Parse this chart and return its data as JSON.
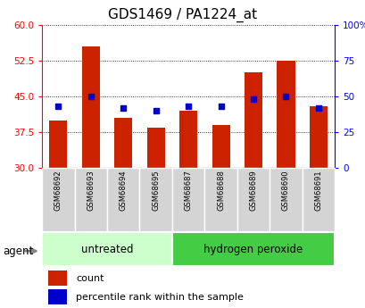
{
  "title": "GDS1469 / PA1224_at",
  "samples": [
    "GSM68692",
    "GSM68693",
    "GSM68694",
    "GSM68695",
    "GSM68687",
    "GSM68688",
    "GSM68689",
    "GSM68690",
    "GSM68691"
  ],
  "counts": [
    40.0,
    55.5,
    40.5,
    38.5,
    42.0,
    39.0,
    50.0,
    52.5,
    43.0
  ],
  "percentiles": [
    43,
    50,
    42,
    40,
    43,
    43,
    48,
    50,
    42
  ],
  "ylim_left": [
    30,
    60
  ],
  "ylim_right": [
    0,
    100
  ],
  "yticks_left": [
    30,
    37.5,
    45,
    52.5,
    60
  ],
  "yticks_right": [
    0,
    25,
    50,
    75,
    100
  ],
  "bar_color": "#cc2200",
  "dot_color": "#0000cc",
  "bar_bottom": 30,
  "groups": [
    {
      "label": "untreated",
      "indices": [
        0,
        1,
        2,
        3
      ],
      "color": "#ccffcc",
      "edge_color": "#44bb44"
    },
    {
      "label": "hydrogen peroxide",
      "indices": [
        4,
        5,
        6,
        7,
        8
      ],
      "color": "#44cc44",
      "edge_color": "#44aa44"
    }
  ],
  "group_label": "agent",
  "legend_count": "count",
  "legend_percentile": "percentile rank within the sample",
  "title_fontsize": 11,
  "tick_fontsize": 7.5,
  "sample_fontsize": 6.0,
  "group_fontsize": 8.5,
  "legend_fontsize": 8.0
}
